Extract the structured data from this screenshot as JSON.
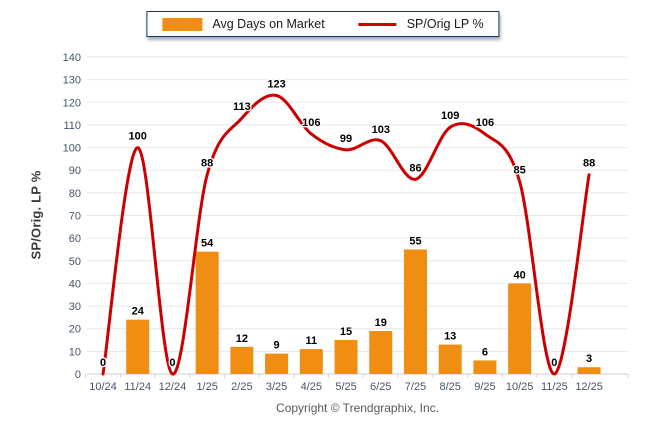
{
  "legend": {
    "bar_label": "Avg Days on Market",
    "line_label": "SP/Orig LP %"
  },
  "footer": {
    "copyright": "Copyright © Trendgraphix, Inc."
  },
  "colors": {
    "bar": "#EF8E13",
    "line": "#CC0000",
    "legend_border": "#17365D",
    "gridline": "#E7E7E7",
    "axis_line": "#C9CFD8",
    "axis_tick": "#C9D4E2",
    "tick_label": "#44546A"
  },
  "chart_data": {
    "type": "bar",
    "title": "",
    "xlabel": "",
    "ylabel": "SP/Orig. LP %",
    "ylim": [
      0,
      140
    ],
    "ytick_step": 10,
    "grid": true,
    "legend_position": "top-center",
    "categories": [
      "10/24",
      "11/24",
      "12/24",
      "1/25",
      "2/25",
      "3/25",
      "4/25",
      "5/25",
      "6/25",
      "7/25",
      "8/25",
      "9/25",
      "10/25",
      "11/25",
      "12/25"
    ],
    "series": [
      {
        "name": "Avg Days on Market",
        "type": "bar",
        "color": "#EF8E13",
        "values": [
          0,
          24,
          0,
          54,
          12,
          9,
          11,
          15,
          19,
          55,
          13,
          6,
          40,
          0,
          3
        ]
      },
      {
        "name": "SP/Orig LP %",
        "type": "line",
        "color": "#CC0000",
        "values": [
          0,
          100,
          0,
          88,
          113,
          123,
          106,
          99,
          103,
          86,
          109,
          106,
          85,
          0,
          88
        ]
      }
    ]
  }
}
